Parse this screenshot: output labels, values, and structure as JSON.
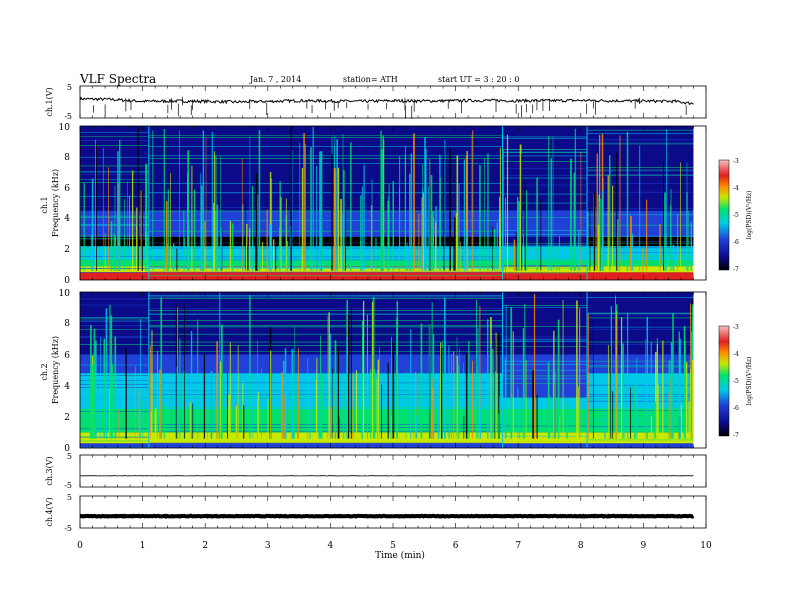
{
  "header": {
    "title": "VLF  Spectra",
    "date": "Jan.  7  , 2014",
    "station": "station= ATH",
    "start": "start  UT  =    3  : 20 : 0"
  },
  "chart_data": [
    {
      "type": "line",
      "panel": "ch1-waveform",
      "ylabel": "ch.1(V)",
      "ylim": [
        -5,
        5
      ],
      "yticks": [
        "5",
        "-5"
      ],
      "xlim": [
        0,
        10
      ],
      "x": [
        0,
        0.5,
        1,
        1.5,
        2,
        2.5,
        3,
        3.5,
        4,
        4.5,
        5,
        5.5,
        6,
        6.5,
        7,
        7.5,
        8,
        8.5,
        9,
        9.5,
        9.8
      ],
      "y": [
        1.0,
        0.8,
        0.2,
        0.3,
        0.2,
        0.0,
        0.2,
        0.4,
        0.3,
        0.2,
        0.4,
        0.3,
        0.4,
        0.5,
        0.4,
        0.4,
        0.5,
        0.4,
        0.3,
        0.2,
        -0.5
      ]
    },
    {
      "type": "heatmap",
      "panel": "ch1-spectrogram",
      "channel_label": "ch.1",
      "ylabel": "Frequency (kHz)",
      "ylim": [
        0,
        10
      ],
      "yticks": [
        "0",
        "2",
        "4",
        "6",
        "8",
        "10"
      ],
      "xlim": [
        0,
        10
      ],
      "segment_breaks_min": [
        1.1,
        6.75,
        8.1
      ],
      "colorbar": {
        "label": "log(PSD)(V²/Hz)",
        "range": [
          -7,
          -3
        ],
        "ticks": [
          "-3",
          "-4",
          "-5",
          "-6",
          "-7"
        ]
      }
    },
    {
      "type": "heatmap",
      "panel": "ch2-spectrogram",
      "channel_label": "ch.2",
      "ylabel": "Frequency (kHz)",
      "ylim": [
        0,
        10
      ],
      "yticks": [
        "0",
        "2",
        "4",
        "6",
        "8",
        "10"
      ],
      "xlim": [
        0,
        10
      ],
      "segment_breaks_min": [
        1.1,
        6.75,
        8.1
      ],
      "colorbar": {
        "label": "log(PSD)(V²/Hz)",
        "range": [
          -7,
          -3
        ],
        "ticks": [
          "-3",
          "-4",
          "-5",
          "-6",
          "-7"
        ]
      }
    },
    {
      "type": "line",
      "panel": "ch3-waveform",
      "ylabel": "ch.3(V)",
      "ylim": [
        -5,
        5
      ],
      "yticks": [
        "5",
        "-5"
      ],
      "xlim": [
        0,
        10
      ],
      "x": [
        0,
        9.8
      ],
      "y": [
        -1.5,
        -1.5
      ]
    },
    {
      "type": "line",
      "panel": "ch4-waveform",
      "ylabel": "ch.4(V)",
      "ylim": [
        -5,
        5
      ],
      "yticks": [
        "5",
        "-5"
      ],
      "xlim": [
        0,
        10
      ],
      "xlabel": "Time  (min)",
      "xticks": [
        "0",
        "1",
        "2",
        "3",
        "4",
        "5",
        "6",
        "7",
        "8",
        "9",
        "10"
      ],
      "x": [
        0,
        9.8
      ],
      "y": [
        -1.3,
        -1.3
      ]
    }
  ],
  "colors": {
    "colormap": [
      "#000000",
      "#0b0b8a",
      "#2040d8",
      "#00c8e8",
      "#00e070",
      "#c8e800",
      "#ff8a00",
      "#e02020",
      "#f6c0c0"
    ],
    "axis": "#000000",
    "trace": "#000000"
  }
}
